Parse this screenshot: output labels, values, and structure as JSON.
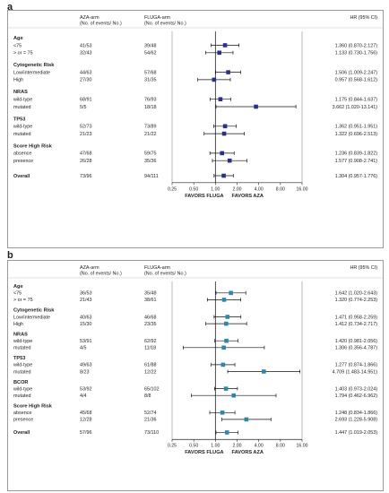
{
  "chart_data": [
    {
      "type": "forest",
      "panel_label": "a",
      "columns": {
        "arm1": [
          "AZA-arm",
          "(No. of events/ No.)"
        ],
        "arm2": [
          "FLUGA-arm",
          "(No. of events/ No.)"
        ],
        "hr": "HR (95% CI)"
      },
      "x_scale": "log2",
      "xlim": [
        0.25,
        16
      ],
      "ticks": [
        "0.25",
        "0.50",
        "1.00",
        "2.00",
        "4.00",
        "8.00",
        "16.00"
      ],
      "tick_values": [
        0.25,
        0.5,
        1,
        2,
        4,
        8,
        16
      ],
      "reference_line": 1,
      "favors_left": "FAVORS FLUGA",
      "favors_right": "FAVORS AZA",
      "groups": [
        {
          "title": "Age",
          "rows": [
            {
              "label": "<75",
              "arm1": "41/53",
              "arm2": "39/48",
              "hr_text": "1.360 (0.870-2.127)",
              "hr": 1.36,
              "lo": 0.87,
              "hi": 2.127
            },
            {
              "label": "> or = 75",
              "arm1": "32/43",
              "arm2": "54/62",
              "hr_text": "1.133 (0.730-1.756)",
              "hr": 1.133,
              "lo": 0.73,
              "hi": 1.756
            }
          ]
        },
        {
          "title": "Cytogenetic Risk",
          "rows": [
            {
              "label": "Low/intermediate",
              "arm1": "44/63",
              "arm2": "57/68",
              "hr_text": "1.506 (1.009-2.247)",
              "hr": 1.506,
              "lo": 1.009,
              "hi": 2.247
            },
            {
              "label": "High",
              "arm1": "27/30",
              "arm2": "31/35",
              "hr_text": "0.957 (0.568-1.612)",
              "hr": 0.957,
              "lo": 0.568,
              "hi": 1.612
            }
          ]
        },
        {
          "title": "NRAS",
          "rows": [
            {
              "label": "wild-type",
              "arm1": "68/91",
              "arm2": "76/93",
              "hr_text": "1.175 (0.844-1.637)",
              "hr": 1.175,
              "lo": 0.844,
              "hi": 1.637
            },
            {
              "label": "mutated",
              "arm1": "5/5",
              "arm2": "18/18",
              "hr_text": "3.662 (1.020-13.141)",
              "hr": 3.662,
              "lo": 1.02,
              "hi": 13.141
            }
          ]
        },
        {
          "title": "TP53",
          "rows": [
            {
              "label": "wild-type",
              "arm1": "52/73",
              "arm2": "73/89",
              "hr_text": "1.362 (0.951-1.951)",
              "hr": 1.362,
              "lo": 0.951,
              "hi": 1.951
            },
            {
              "label": "mutated",
              "arm1": "21/23",
              "arm2": "21/22",
              "hr_text": "1.322 (0.696-2.513)",
              "hr": 1.322,
              "lo": 0.696,
              "hi": 2.513
            }
          ]
        },
        {
          "title": "Score High Risk",
          "rows": [
            {
              "label": "absence",
              "arm1": "47/68",
              "arm2": "59/75",
              "hr_text": "1.236 (0.839-1.822)",
              "hr": 1.236,
              "lo": 0.839,
              "hi": 1.822
            },
            {
              "label": "presence",
              "arm1": "26/28",
              "arm2": "35/36",
              "hr_text": "1.577 (0.908-2.741)",
              "hr": 1.577,
              "lo": 0.908,
              "hi": 2.741
            }
          ]
        },
        {
          "title": "",
          "rows": [
            {
              "label": "Overall",
              "bold": true,
              "arm1": "73/96",
              "arm2": "94/111",
              "hr_text": "1.304 (0.957-1.776)",
              "hr": 1.304,
              "lo": 0.957,
              "hi": 1.776
            }
          ]
        }
      ],
      "colors": {
        "marker": "#2a2f8c",
        "line": "#111111"
      }
    },
    {
      "type": "forest",
      "panel_label": "b",
      "columns": {
        "arm1": [
          "AZA-arm",
          "(No. of events/ No.)"
        ],
        "arm2": [
          "FLUGA-arm",
          "(No. of events/ No.)"
        ],
        "hr": "HR (95% CI)"
      },
      "x_scale": "log2",
      "xlim": [
        0.25,
        16
      ],
      "ticks": [
        "0.25",
        "0.50",
        "1.00",
        "2.00",
        "4.00",
        "8.00",
        "16.00"
      ],
      "tick_values": [
        0.25,
        0.5,
        1,
        2,
        4,
        8,
        16
      ],
      "reference_line": 1,
      "favors_left": "FAVORS FLUGA",
      "favors_right": "FAVORS AZA",
      "groups": [
        {
          "title": "Age",
          "rows": [
            {
              "label": "<75",
              "arm1": "36/53",
              "arm2": "35/48",
              "hr_text": "1.642 (1.020-2.643)",
              "hr": 1.642,
              "lo": 1.02,
              "hi": 2.643
            },
            {
              "label": "> or = 75",
              "arm1": "21/43",
              "arm2": "38/61",
              "hr_text": "1.320 (0.774-2.253)",
              "hr": 1.32,
              "lo": 0.774,
              "hi": 2.253
            }
          ]
        },
        {
          "title": "Cytogenetic Risk",
          "rows": [
            {
              "label": "Low/intermediate",
              "arm1": "40/63",
              "arm2": "46/68",
              "hr_text": "1.471 (0.958-2.259)",
              "hr": 1.471,
              "lo": 0.958,
              "hi": 2.259
            },
            {
              "label": "High",
              "arm1": "15/30",
              "arm2": "23/35",
              "hr_text": "1.412 (0.734-2.717)",
              "hr": 1.412,
              "lo": 0.734,
              "hi": 2.717
            }
          ]
        },
        {
          "title": "NRAS",
          "rows": [
            {
              "label": "wild-type",
              "arm1": "53/91",
              "arm2": "62/92",
              "hr_text": "1.420 (0.981-2.056)",
              "hr": 1.42,
              "lo": 0.981,
              "hi": 2.056
            },
            {
              "label": "mutated",
              "arm1": "4/5",
              "arm2": "11/18",
              "hr_text": "1.306 (0.356-4.787)",
              "hr": 1.306,
              "lo": 0.356,
              "hi": 4.787
            }
          ]
        },
        {
          "title": "TP53",
          "rows": [
            {
              "label": "wild-type",
              "arm1": "49/63",
              "arm2": "61/88",
              "hr_text": "1.277 (0.874-1.866)",
              "hr": 1.277,
              "lo": 0.874,
              "hi": 1.866
            },
            {
              "label": "mutated",
              "arm1": "8/23",
              "arm2": "12/22",
              "hr_text": "4.709 (1.483-14.951)",
              "hr": 4.709,
              "lo": 1.483,
              "hi": 14.951
            }
          ]
        },
        {
          "title": "BCOR",
          "rows": [
            {
              "label": "wild-type",
              "arm1": "53/92",
              "arm2": "65/102",
              "hr_text": "1.403 (0.973-2.024)",
              "hr": 1.403,
              "lo": 0.973,
              "hi": 2.024
            },
            {
              "label": "mutated",
              "arm1": "4/4",
              "arm2": "8/8",
              "hr_text": "1.794 (0.462-6.962)",
              "hr": 1.794,
              "lo": 0.462,
              "hi": 6.962
            }
          ]
        },
        {
          "title": "Score High Risk",
          "rows": [
            {
              "label": "absence",
              "arm1": "45/68",
              "arm2": "52/74",
              "hr_text": "1.248 (0.834-1.866)",
              "hr": 1.248,
              "lo": 0.834,
              "hi": 1.866
            },
            {
              "label": "presence",
              "arm1": "12/28",
              "arm2": "21/36",
              "hr_text": "2.693 (1.228-5.908)",
              "hr": 2.693,
              "lo": 1.228,
              "hi": 5.908
            }
          ]
        },
        {
          "title": "",
          "rows": [
            {
              "label": "Overall",
              "bold": true,
              "arm1": "57/96",
              "arm2": "73/110",
              "hr_text": "1.447 (1.019-2.053)",
              "hr": 1.447,
              "lo": 1.019,
              "hi": 2.053
            }
          ]
        }
      ],
      "colors": {
        "marker": "#2e86a8",
        "line": "#111111"
      }
    }
  ]
}
